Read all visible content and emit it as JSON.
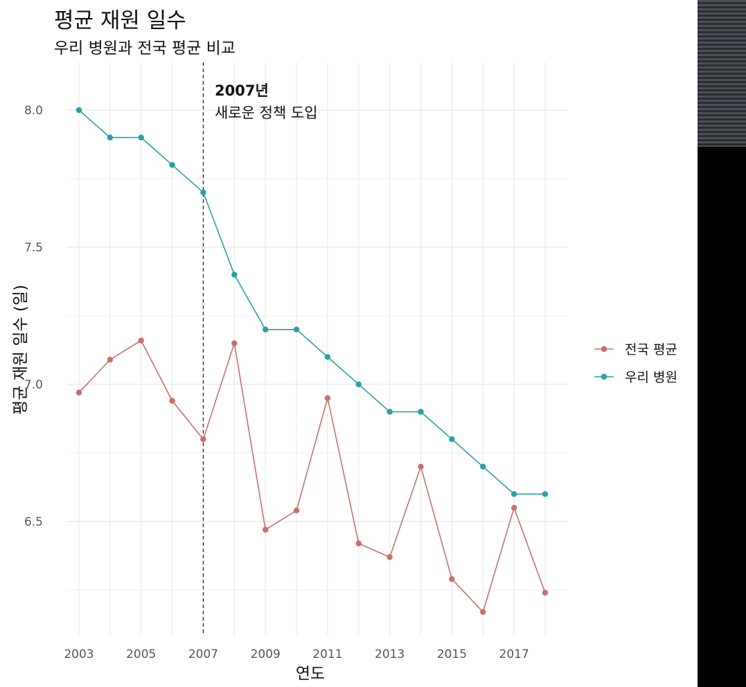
{
  "title": "평균 재원 일수",
  "subtitle": "우리 병원과 전국 평균 비교",
  "chart_data": {
    "type": "line",
    "title": "평균 재원 일수",
    "subtitle": "우리 병원과 전국 평균 비교",
    "xlabel": "연도",
    "ylabel": "평균 재원 일수 (일)",
    "x": [
      2003,
      2004,
      2005,
      2006,
      2007,
      2008,
      2009,
      2010,
      2011,
      2012,
      2013,
      2014,
      2015,
      2016,
      2017,
      2018
    ],
    "x_ticks": [
      "2003",
      "2005",
      "2007",
      "2009",
      "2011",
      "2013",
      "2015",
      "2017"
    ],
    "y_ticks": [
      "6.5",
      "7.0",
      "7.5",
      "8.0"
    ],
    "ylim": [
      6.1,
      8.2
    ],
    "grid": true,
    "legend_position": "right",
    "series": [
      {
        "name": "전국 평균",
        "color": "#c8706a",
        "values": [
          6.97,
          7.09,
          7.16,
          6.94,
          6.8,
          7.15,
          6.47,
          6.54,
          6.95,
          6.42,
          6.37,
          6.7,
          6.29,
          6.17,
          6.55,
          6.24
        ]
      },
      {
        "name": "우리 병원",
        "color": "#2a9fa9",
        "values": [
          8.0,
          7.9,
          7.9,
          7.8,
          7.7,
          7.4,
          7.2,
          7.2,
          7.1,
          7.0,
          6.9,
          6.9,
          6.8,
          6.7,
          6.6,
          6.6
        ]
      }
    ],
    "annotation": {
      "x": 2007,
      "title": "2007년",
      "text": "새로운 정책 도입"
    }
  }
}
